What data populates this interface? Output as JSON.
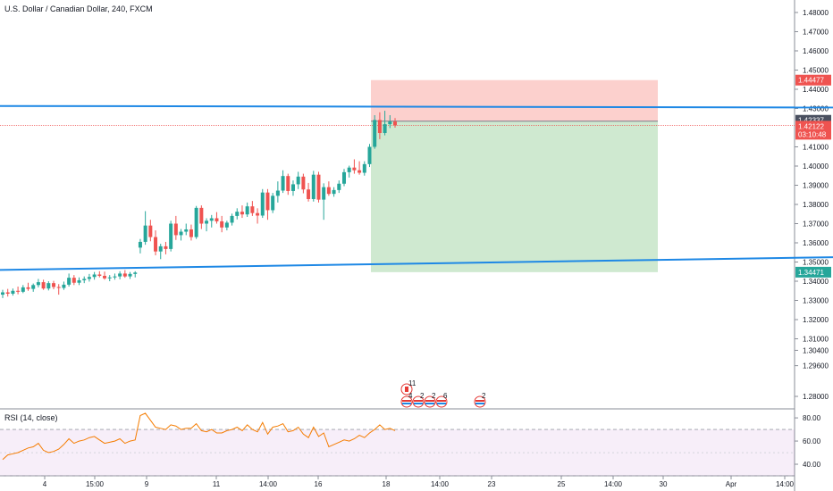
{
  "chart_data": {
    "type": "candlestick",
    "symbol": "U.S. Dollar / Canadian Dollar",
    "interval": "240",
    "exchange": "FXCM",
    "title": "U.S. Dollar / Canadian Dollar, 240, FXCM",
    "ylim": [
      1.2735,
      1.4865
    ],
    "y_ticks": [
      "1.48000",
      "1.47000",
      "1.46000",
      "1.45000",
      "1.44000",
      "1.43000",
      "1.41000",
      "1.40000",
      "1.39000",
      "1.38000",
      "1.37000",
      "1.36000",
      "1.35000",
      "1.34000",
      "1.33000",
      "1.32000",
      "1.31000",
      "1.30400",
      "1.29600",
      "1.28000"
    ],
    "x_ticks": [
      "4",
      "15:00",
      "9",
      "11",
      "14:00",
      "16",
      "18",
      "14:00",
      "23",
      "25",
      "14:00",
      "30",
      "Apr",
      "14:00"
    ],
    "price_tags": [
      {
        "label": "1.44477",
        "value": 1.44477,
        "color": "#ef5350"
      },
      {
        "label": "1.42337",
        "value": 1.42337,
        "color": "#4a5060"
      },
      {
        "label": "1.42122",
        "value": 1.42122,
        "color": "#ef5350"
      },
      {
        "label": "03:10:48",
        "value": 1.4175,
        "color": "#ef5350"
      },
      {
        "label": "1.34471",
        "value": 1.34471,
        "color": "#26a69a"
      }
    ],
    "trendlines": [
      {
        "from": [
          0,
          1.4313
        ],
        "to": [
          932,
          1.4305
        ],
        "color": "#1e88e5"
      },
      {
        "from": [
          0,
          1.3459
        ],
        "to": [
          932,
          1.3525
        ],
        "color": "#1e88e5"
      }
    ],
    "position": {
      "entry": 1.42337,
      "stop": 1.44477,
      "target": 1.34471
    },
    "candles": [
      [
        1.333,
        1.3355,
        1.3312,
        1.3342
      ],
      [
        1.3342,
        1.336,
        1.332,
        1.3335
      ],
      [
        1.3335,
        1.3362,
        1.3325,
        1.335
      ],
      [
        1.335,
        1.3372,
        1.3332,
        1.3345
      ],
      [
        1.3345,
        1.338,
        1.3338,
        1.3368
      ],
      [
        1.3368,
        1.3392,
        1.335,
        1.336
      ],
      [
        1.336,
        1.3388,
        1.3345,
        1.338
      ],
      [
        1.338,
        1.3412,
        1.3368,
        1.3395
      ],
      [
        1.3395,
        1.3408,
        1.3355,
        1.3362
      ],
      [
        1.3362,
        1.34,
        1.3352,
        1.339
      ],
      [
        1.339,
        1.3402,
        1.3358,
        1.337
      ],
      [
        1.337,
        1.3385,
        1.333,
        1.3365
      ],
      [
        1.3365,
        1.3398,
        1.3355,
        1.3382
      ],
      [
        1.3382,
        1.344,
        1.3372,
        1.3418
      ],
      [
        1.3418,
        1.3432,
        1.338,
        1.3392
      ],
      [
        1.3392,
        1.342,
        1.338,
        1.3405
      ],
      [
        1.3405,
        1.3425,
        1.339,
        1.3412
      ],
      [
        1.3412,
        1.3438,
        1.3398,
        1.3422
      ],
      [
        1.3422,
        1.3448,
        1.3408,
        1.3435
      ],
      [
        1.3435,
        1.3452,
        1.342,
        1.3428
      ],
      [
        1.3428,
        1.345,
        1.3408,
        1.3415
      ],
      [
        1.3415,
        1.3432,
        1.34,
        1.342
      ],
      [
        1.342,
        1.344,
        1.3408,
        1.3425
      ],
      [
        1.3425,
        1.3452,
        1.341,
        1.344
      ],
      [
        1.344,
        1.3458,
        1.3418,
        1.3425
      ],
      [
        1.3425,
        1.3448,
        1.3412,
        1.3438
      ],
      [
        1.3438,
        1.3452,
        1.342,
        1.3445
      ],
      [
        1.3575,
        1.362,
        1.3545,
        1.3605
      ],
      [
        1.3605,
        1.3765,
        1.359,
        1.369
      ],
      [
        1.369,
        1.372,
        1.3608,
        1.363
      ],
      [
        1.363,
        1.3665,
        1.3535,
        1.3555
      ],
      [
        1.3555,
        1.3595,
        1.3515,
        1.3582
      ],
      [
        1.3582,
        1.3605,
        1.354,
        1.3568
      ],
      [
        1.3568,
        1.3715,
        1.3555,
        1.37
      ],
      [
        1.37,
        1.374,
        1.3615,
        1.364
      ],
      [
        1.364,
        1.3672,
        1.3612,
        1.3658
      ],
      [
        1.3658,
        1.37,
        1.364,
        1.367
      ],
      [
        1.367,
        1.3695,
        1.3612,
        1.363
      ],
      [
        1.363,
        1.3792,
        1.362,
        1.3782
      ],
      [
        1.3782,
        1.3795,
        1.3672,
        1.37
      ],
      [
        1.37,
        1.3728,
        1.366,
        1.3715
      ],
      [
        1.3715,
        1.3745,
        1.368,
        1.3728
      ],
      [
        1.3728,
        1.376,
        1.37,
        1.3712
      ],
      [
        1.3712,
        1.374,
        1.3655,
        1.368
      ],
      [
        1.368,
        1.3715,
        1.3665,
        1.3705
      ],
      [
        1.3705,
        1.3752,
        1.369,
        1.374
      ],
      [
        1.374,
        1.378,
        1.3722,
        1.3762
      ],
      [
        1.3762,
        1.3795,
        1.373,
        1.3748
      ],
      [
        1.3748,
        1.381,
        1.3735,
        1.379
      ],
      [
        1.379,
        1.3818,
        1.374,
        1.3755
      ],
      [
        1.3755,
        1.378,
        1.37,
        1.3742
      ],
      [
        1.3742,
        1.388,
        1.373,
        1.3862
      ],
      [
        1.3862,
        1.388,
        1.372,
        1.377
      ],
      [
        1.377,
        1.386,
        1.3755,
        1.3845
      ],
      [
        1.3845,
        1.392,
        1.381,
        1.3872
      ],
      [
        1.3872,
        1.3978,
        1.386,
        1.3948
      ],
      [
        1.3948,
        1.396,
        1.385,
        1.387
      ],
      [
        1.387,
        1.3925,
        1.3845,
        1.3905
      ],
      [
        1.3905,
        1.397,
        1.388,
        1.3945
      ],
      [
        1.3945,
        1.396,
        1.3858,
        1.3878
      ],
      [
        1.3878,
        1.3912,
        1.3815,
        1.3828
      ],
      [
        1.3828,
        1.3975,
        1.3815,
        1.3955
      ],
      [
        1.3955,
        1.397,
        1.381,
        1.3825
      ],
      [
        1.3825,
        1.391,
        1.372,
        1.389
      ],
      [
        1.389,
        1.392,
        1.3845,
        1.3855
      ],
      [
        1.3855,
        1.389,
        1.384,
        1.3875
      ],
      [
        1.3875,
        1.3925,
        1.386,
        1.3908
      ],
      [
        1.3908,
        1.3985,
        1.3895,
        1.3968
      ],
      [
        1.3968,
        1.4002,
        1.394,
        1.3992
      ],
      [
        1.3992,
        1.4035,
        1.396,
        1.3978
      ],
      [
        1.3978,
        1.4025,
        1.3955,
        1.3965
      ],
      [
        1.3965,
        1.4025,
        1.395,
        1.401
      ],
      [
        1.401,
        1.4115,
        1.3995,
        1.41
      ],
      [
        1.41,
        1.4265,
        1.409,
        1.424
      ],
      [
        1.424,
        1.428,
        1.414,
        1.4172
      ],
      [
        1.4172,
        1.4288,
        1.416,
        1.4218
      ],
      [
        1.4218,
        1.4265,
        1.4198,
        1.4232
      ],
      [
        1.4232,
        1.425,
        1.42,
        1.4212
      ]
    ],
    "rsi": {
      "label": "RSI (14, close)",
      "ylim": [
        30,
        87
      ],
      "y_ticks": [
        "80.00",
        "60.00",
        "40.00"
      ],
      "band": [
        30,
        70
      ],
      "values": [
        44,
        48,
        49,
        50,
        52,
        54,
        55,
        58,
        52,
        50,
        51,
        53,
        57,
        62,
        58,
        60,
        61,
        63,
        64,
        61,
        58,
        59,
        60,
        62,
        58,
        60,
        61,
        82,
        84,
        78,
        72,
        71,
        70,
        74,
        73,
        70,
        71,
        71,
        75,
        69,
        68,
        70,
        67,
        67,
        69,
        70,
        72,
        69,
        74,
        70,
        68,
        76,
        66,
        72,
        73,
        75,
        68,
        69,
        72,
        66,
        63,
        72,
        64,
        67,
        55,
        57,
        59,
        61,
        60,
        62,
        65,
        63,
        67,
        70,
        74,
        70,
        71,
        69
      ]
    },
    "events": [
      {
        "flag": "ca",
        "label": "11",
        "x": 455,
        "y": 436
      },
      {
        "flag": "us",
        "label": "4",
        "x": 455,
        "y": 450
      },
      {
        "flag": "us",
        "label": "2",
        "x": 468,
        "y": 450
      },
      {
        "flag": "us",
        "label": "2",
        "x": 481,
        "y": 450
      },
      {
        "flag": "us",
        "label": "6",
        "x": 494,
        "y": 450
      },
      {
        "flag": "us",
        "label": "2",
        "x": 537,
        "y": 450
      }
    ]
  }
}
